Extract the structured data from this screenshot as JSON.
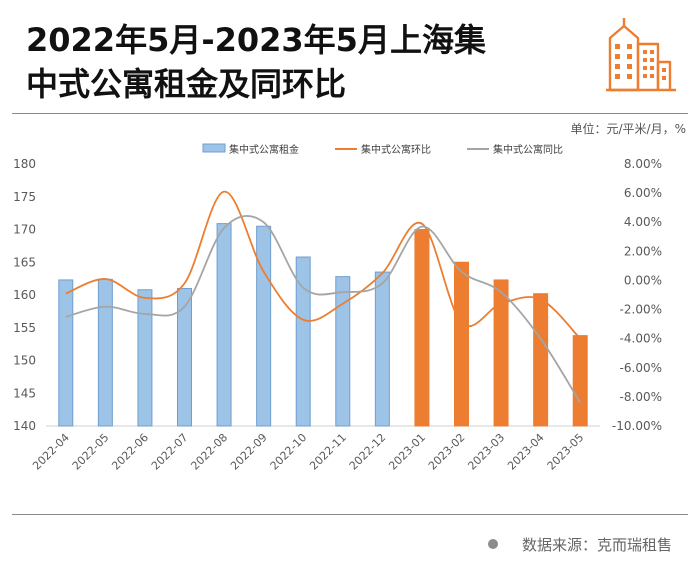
{
  "title_line1": "2022年5月-2023年5月上海集",
  "title_line2": "中式公寓租金及同环比",
  "unit_note": "单位：元/平米/月，%",
  "source": "数据来源：克而瑞租售",
  "logo_icon": "city-buildings-icon",
  "colors": {
    "bar_blue": "#9DC3E6",
    "bar_blue_edge": "#6F9FD0",
    "bar_orange": "#ED7D31",
    "mom_line": "#ED7D31",
    "yoy_line": "#A5A5A5",
    "accent_logo": "#ED7D31"
  },
  "chart_data": {
    "type": "bar",
    "categories": [
      "2022-04",
      "2022-05",
      "2022-06",
      "2022-07",
      "2022-08",
      "2022-09",
      "2022-10",
      "2022-11",
      "2022-12",
      "2023-01",
      "2023-02",
      "2023-03",
      "2023-04",
      "2023-05"
    ],
    "series": [
      {
        "name": "集中式公寓租金",
        "type": "bar",
        "axis": "left",
        "values": [
          162.3,
          162.4,
          160.8,
          161.0,
          170.9,
          170.5,
          165.8,
          162.8,
          163.5,
          170.0,
          165.0,
          162.3,
          160.2,
          153.8
        ]
      },
      {
        "name": "集中式公寓环比",
        "type": "line",
        "axis": "right",
        "values": [
          -0.9,
          0.1,
          -1.2,
          -0.2,
          6.1,
          0.6,
          -2.7,
          -1.6,
          0.5,
          3.9,
          -2.9,
          -1.6,
          -1.3,
          -4.0
        ]
      },
      {
        "name": "集中式公寓同比",
        "type": "line",
        "axis": "right",
        "values": [
          -2.5,
          -1.8,
          -2.3,
          -1.8,
          3.6,
          4.0,
          -0.5,
          -0.8,
          -0.2,
          3.7,
          0.6,
          -0.8,
          -4.0,
          -8.4
        ]
      }
    ],
    "highlight_from_index": 9,
    "y_left": {
      "range": [
        140,
        180
      ],
      "ticks": [
        "140",
        "145",
        "150",
        "155",
        "160",
        "165",
        "170",
        "175",
        "180"
      ]
    },
    "y_right": {
      "range": [
        -10,
        8
      ],
      "ticks": [
        "-10.00%",
        "-8.00%",
        "-6.00%",
        "-4.00%",
        "-2.00%",
        "0.00%",
        "2.00%",
        "4.00%",
        "6.00%",
        "8.00%"
      ]
    },
    "legend_position": "top-center",
    "grid": false
  }
}
